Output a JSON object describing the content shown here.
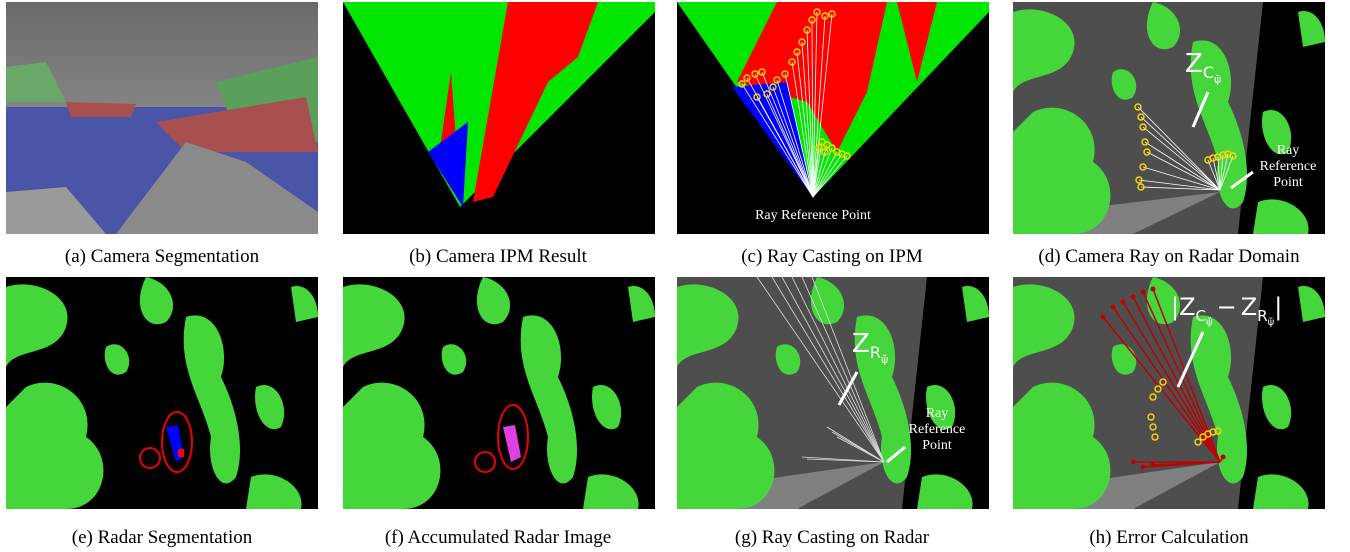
{
  "panels": [
    {
      "caption": "(a) Camera Segmentation"
    },
    {
      "caption": "(b) Camera IPM Result"
    },
    {
      "caption": "(c) Ray Casting on IPM",
      "annotation": "Ray Reference Point"
    },
    {
      "caption": "(d) Camera Ray on Radar Domain",
      "annotation_lines": [
        "Ray",
        "Reference",
        "Point"
      ],
      "symbol": {
        "base": "Z",
        "sub": "C",
        "subsub": "ψ̆"
      }
    },
    {
      "caption": "(e) Radar Segmentation"
    },
    {
      "caption": "(f) Accumulated Radar Image"
    },
    {
      "caption": "(g) Ray Casting on Radar",
      "annotation_lines": [
        "Ray",
        "Reference",
        "Point"
      ],
      "symbol": {
        "base": "Z",
        "sub": "R",
        "subsub": "ψ̆"
      }
    },
    {
      "caption": "(h) Error Calculation",
      "symbol": {
        "open": "|",
        "a": {
          "base": "Z",
          "sub": "C",
          "subsub": "ψ̆"
        },
        "minus": "−",
        "b": {
          "base": "Z",
          "sub": "R",
          "subsub": "ψ̆"
        },
        "close": "|"
      }
    }
  ]
}
